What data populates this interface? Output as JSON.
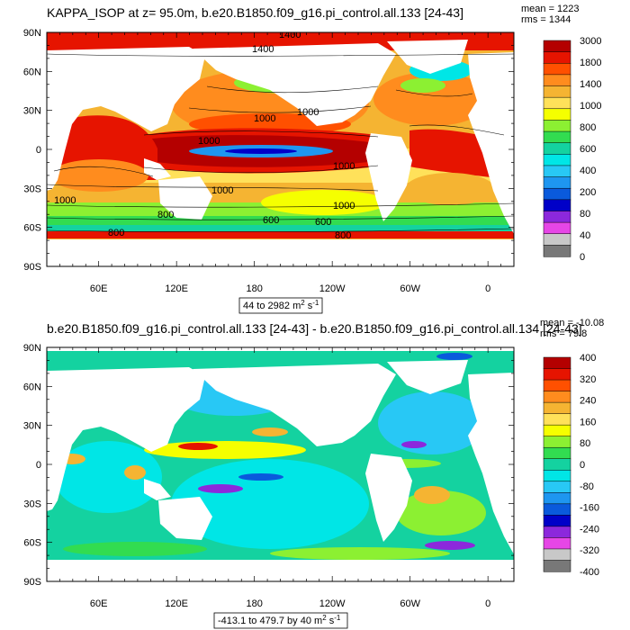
{
  "chart_data": [
    {
      "type": "heatmap",
      "title": "KAPPA_ISOP at z=  95.0m, b.e20.B1850.f09_g16.pi_control.all.133 [24-43]",
      "stats": [
        "mean = 1223",
        "rms = 1344"
      ],
      "x_ticks": [
        "60E",
        "120E",
        "180",
        "120W",
        "60W",
        "0"
      ],
      "y_ticks": [
        "90N",
        "60N",
        "30N",
        "0",
        "30S",
        "60S",
        "90S"
      ],
      "xlim": [
        20,
        380
      ],
      "ylim": [
        -90,
        90
      ],
      "colorbar": {
        "labels": [
          "3000",
          "1800",
          "1400",
          "1000",
          "800",
          "600",
          "400",
          "200",
          "80",
          "40",
          "0"
        ],
        "colors": [
          "#b40000",
          "#e61400",
          "#ff5000",
          "#ff8c1e",
          "#f5b432",
          "#ffe15a",
          "#f5ff00",
          "#8cf032",
          "#32dc50",
          "#14d2a0",
          "#00e6e6",
          "#28c8f5",
          "#1e96f0",
          "#0a5adc",
          "#0000c8",
          "#8c28dc",
          "#e646e6",
          "#c8c8c8",
          "#787878"
        ]
      },
      "range_label": "44 to 2982",
      "range_units": "m",
      "range_units_tail": " s",
      "exp": "2",
      "exp_tail": "-1",
      "contour_labels": [
        "1400",
        "1400",
        "1000",
        "1000",
        "1000",
        "1000",
        "1000",
        "1000",
        "1000",
        "800",
        "600",
        "600",
        "800",
        "800"
      ]
    },
    {
      "type": "heatmap",
      "title": "b.e20.B1850.f09_g16.pi_control.all.133 [24-43] - b.e20.B1850.f09_g16.pi_control.all.134 [24-43]",
      "stats": [
        "mean = -10.08",
        "rms = 79.8"
      ],
      "x_ticks": [
        "60E",
        "120E",
        "180",
        "120W",
        "60W",
        "0"
      ],
      "y_ticks": [
        "90N",
        "60N",
        "30N",
        "0",
        "30S",
        "60S",
        "90S"
      ],
      "xlim": [
        20,
        380
      ],
      "ylim": [
        -90,
        90
      ],
      "colorbar": {
        "labels": [
          "400",
          "320",
          "240",
          "160",
          "80",
          "0",
          "-80",
          "-160",
          "-240",
          "-320",
          "-400"
        ],
        "colors": [
          "#b40000",
          "#e61400",
          "#ff5000",
          "#ff8c1e",
          "#f5b432",
          "#ffe15a",
          "#f5ff00",
          "#8cf032",
          "#32dc50",
          "#14d2a0",
          "#00e6e6",
          "#28c8f5",
          "#1e96f0",
          "#0a5adc",
          "#0000c8",
          "#8c28dc",
          "#e646e6",
          "#c8c8c8",
          "#787878"
        ]
      },
      "range_label": "-413.1 to 479.7 by 40",
      "range_units": "m",
      "range_units_tail": " s",
      "exp": "2",
      "exp_tail": "-1"
    }
  ]
}
